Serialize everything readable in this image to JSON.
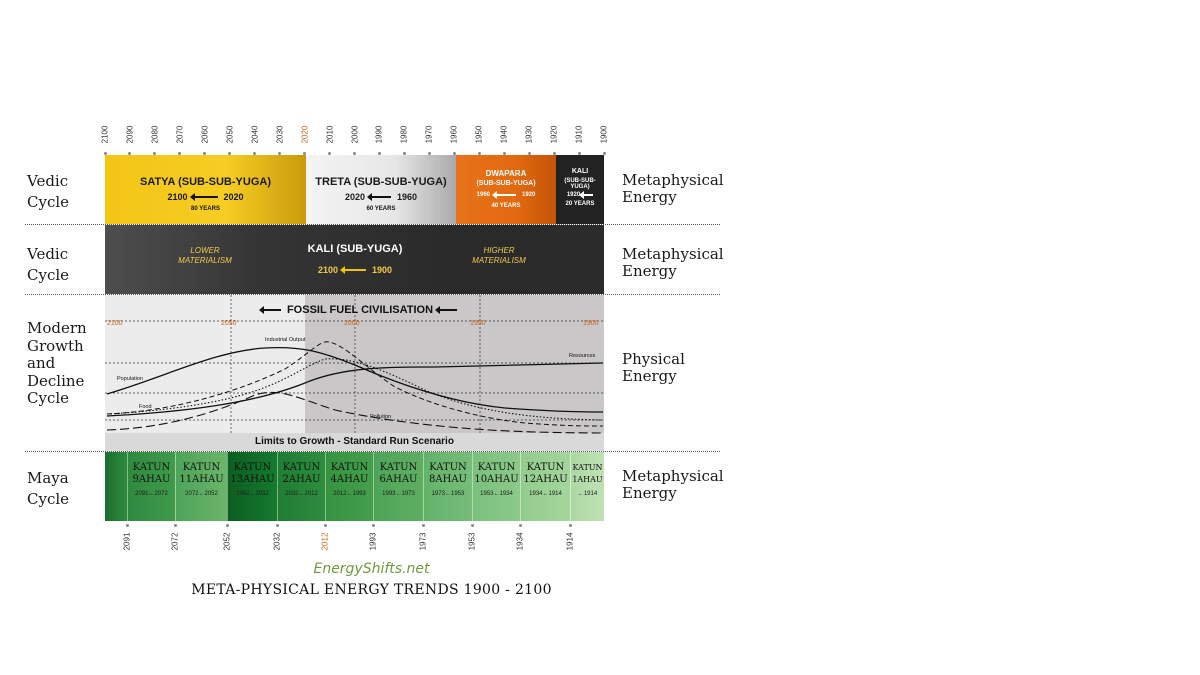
{
  "top_years": [
    "2100",
    "2090",
    "2080",
    "2070",
    "2060",
    "2050",
    "2040",
    "2030",
    "2020",
    "2010",
    "2000",
    "1990",
    "1980",
    "1970",
    "1960",
    "1950",
    "1940",
    "1930",
    "1920",
    "1910",
    "1900"
  ],
  "bottom_years": [
    "2091",
    "2072",
    "2052",
    "2032",
    "2012",
    "1993",
    "1973",
    "1953",
    "1934",
    "1914"
  ],
  "highlight_color": "#c8641e",
  "left_labels": {
    "row1": [
      "Vedic",
      "Cycle"
    ],
    "row2": [
      "Vedic",
      "Cycle"
    ],
    "row3": [
      "Modern",
      "Growth",
      "and",
      "Decline",
      "Cycle"
    ],
    "row4": [
      "Maya",
      "Cycle"
    ]
  },
  "right_labels": {
    "row1": [
      "Metaphysical",
      "Energy"
    ],
    "row2": [
      "Metaphysical",
      "Energy"
    ],
    "row3": [
      "Physical",
      "Energy"
    ],
    "row4": [
      "Metaphysical",
      "Energy"
    ]
  },
  "vedic1": {
    "satya": {
      "title": "SATYA (SUB-SUB-YUGA)",
      "from": "2100",
      "to": "2020",
      "years": "80 YEARS",
      "color": "#f2c400"
    },
    "treta": {
      "title": "TRETA (SUB-SUB-YUGA)",
      "from": "2020",
      "to": "1960",
      "years": "60 YEARS",
      "color": "#d9d9d9"
    },
    "dwapara": {
      "title1": "DWAPARA",
      "title2": "(SUB-SUB-YUGA)",
      "from": "1960",
      "to": "1920",
      "years": "40 YEARS",
      "color": "#e36d12"
    },
    "kali": {
      "title1": "KALI",
      "title2": "(SUB-SUB-",
      "title3": "YUGA)",
      "from": "1920",
      "years": "20 YEARS",
      "color": "#222222"
    }
  },
  "vedic2": {
    "title": "KALI (SUB-YUGA)",
    "from": "2100",
    "to": "1900",
    "left_note1": "LOWER",
    "left_note2": "MATERIALISM",
    "right_note1": "HIGHER",
    "right_note2": "MATERIALISM",
    "accent": "#f2c94c"
  },
  "modern": {
    "banner": "FOSSIL FUEL CIVILISATION",
    "year_labels": [
      "2100",
      "2050",
      "2000",
      "1950",
      "1900"
    ],
    "footer": "Limits to Growth - Standard Run Scenario",
    "curve_labels": {
      "industrial": "Industrial Output",
      "resources": "Resources",
      "population": "Population",
      "food": "Food",
      "pollution": "Pollution"
    }
  },
  "maya": {
    "katuns": [
      {
        "l1": "KATUN",
        "l2": "9AHAU",
        "range": "2091←2072"
      },
      {
        "l1": "KATUN",
        "l2": "11AHAU",
        "range": "2072←2052"
      },
      {
        "l1": "KATUN",
        "l2": "13AHAU",
        "range": "2052←2032"
      },
      {
        "l1": "KATUN",
        "l2": "2AHAU",
        "range": "2032←2012"
      },
      {
        "l1": "KATUN",
        "l2": "4AHAU",
        "range": "2012←1993"
      },
      {
        "l1": "KATUN",
        "l2": "6AHAU",
        "range": "1993←1973"
      },
      {
        "l1": "KATUN",
        "l2": "8AHAU",
        "range": "1973←1953"
      },
      {
        "l1": "KATUN",
        "l2": "10AHAU",
        "range": "1953←1934"
      },
      {
        "l1": "KATUN",
        "l2": "12AHAU",
        "range": "1934←1914"
      },
      {
        "l1": "KATUN",
        "l2": "1AHAU",
        "range": "←1914"
      }
    ]
  },
  "footer": {
    "site": "EnergyShifts.net",
    "title": "META-PHYSICAL ENERGY TRENDS 1900 - 2100"
  }
}
